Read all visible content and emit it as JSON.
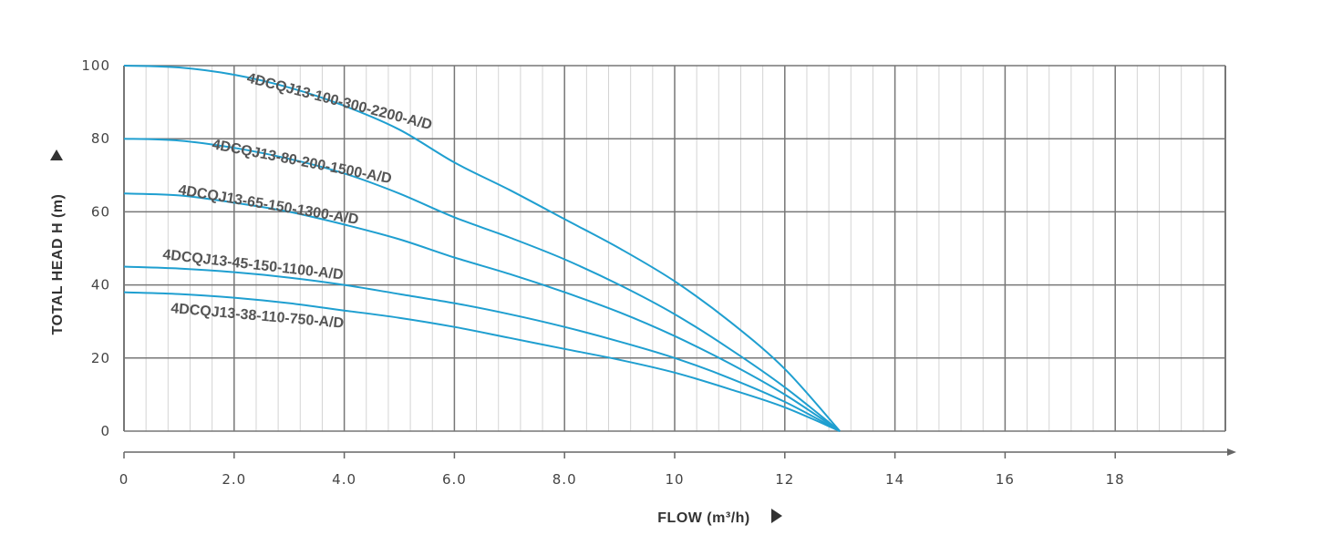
{
  "chart_data": {
    "type": "line",
    "title": "",
    "xlabel": "FLOW (m³/h)",
    "ylabel": "TOTAL HEAD H (m)",
    "xlim": [
      0,
      20
    ],
    "ylim": [
      0,
      100
    ],
    "x_ticks": [
      {
        "value": 0,
        "label": "0"
      },
      {
        "value": 2,
        "label": "2.0"
      },
      {
        "value": 4,
        "label": "4.0"
      },
      {
        "value": 6,
        "label": "6.0"
      },
      {
        "value": 8,
        "label": "8.0"
      },
      {
        "value": 10,
        "label": "10"
      },
      {
        "value": 12,
        "label": "12"
      },
      {
        "value": 14,
        "label": "14"
      },
      {
        "value": 16,
        "label": "16"
      },
      {
        "value": 18,
        "label": "18"
      }
    ],
    "y_ticks": [
      {
        "value": 0,
        "label": "0"
      },
      {
        "value": 20,
        "label": "20"
      },
      {
        "value": 40,
        "label": "40"
      },
      {
        "value": 60,
        "label": "60"
      },
      {
        "value": 80,
        "label": "80"
      },
      {
        "value": 100,
        "label": "100"
      }
    ],
    "grid": true,
    "line_color": "#1f9fd0",
    "grid_color": "#777777",
    "minor_grid_color": "#d4d4d4",
    "series": [
      {
        "name": "4DCQJ13-100-300-2200-A/D",
        "x": [
          0,
          1,
          2,
          3,
          4,
          5,
          6,
          7,
          8,
          9,
          10,
          11,
          12,
          13
        ],
        "y": [
          100,
          99.5,
          97.5,
          94,
          89,
          82.5,
          73.5,
          66,
          58,
          50,
          41,
          30,
          17,
          0
        ]
      },
      {
        "name": "4DCQJ13-80-200-1500-A/D",
        "x": [
          0,
          1,
          2,
          3,
          4,
          5,
          6,
          7,
          8,
          9,
          10,
          11,
          12,
          13
        ],
        "y": [
          80,
          79.5,
          77.5,
          74.5,
          70.5,
          65,
          58.5,
          53,
          47,
          40,
          32,
          22.5,
          12,
          0
        ]
      },
      {
        "name": "4DCQJ13-65-150-1300-A/D",
        "x": [
          0,
          1,
          2,
          3,
          4,
          5,
          6,
          7,
          8,
          9,
          10,
          11,
          12,
          13
        ],
        "y": [
          65,
          64.5,
          62.5,
          60,
          56.5,
          52.5,
          47.5,
          43,
          38,
          32.5,
          26,
          18.5,
          10,
          0
        ]
      },
      {
        "name": "4DCQJ13-45-150-1100-A/D",
        "x": [
          0,
          1,
          2,
          3,
          4,
          5,
          6,
          7,
          8,
          9,
          10,
          11,
          12,
          13
        ],
        "y": [
          45,
          44.5,
          43.5,
          42,
          40,
          37.5,
          35,
          32,
          28.5,
          24.5,
          20,
          14.5,
          8,
          0
        ]
      },
      {
        "name": "4DCQJ13-38-110-750-A/D",
        "x": [
          0,
          1,
          2,
          3,
          4,
          5,
          6,
          7,
          8,
          9,
          10,
          11,
          12,
          13
        ],
        "y": [
          38,
          37.5,
          36.5,
          35,
          33,
          31,
          28.5,
          25.5,
          22.5,
          19.5,
          16,
          11.5,
          6.5,
          0
        ]
      }
    ]
  }
}
